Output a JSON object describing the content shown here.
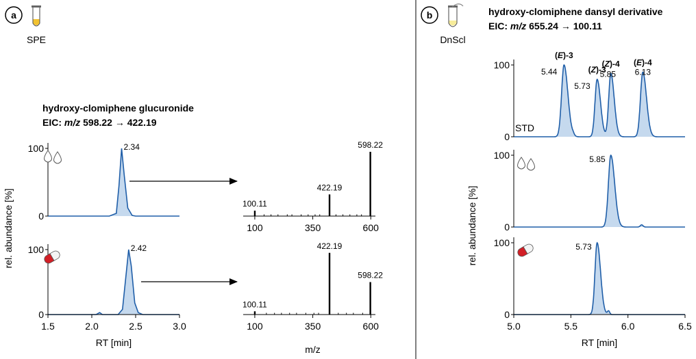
{
  "panel_a": {
    "badge": "a",
    "step_label": "SPE",
    "title": "hydroxy-clomiphene glucuronide",
    "eic_prefix": "EIC: ",
    "eic_mz": "m/z",
    "eic_value": " 598.22 → 422.19"
  },
  "panel_b": {
    "badge": "b",
    "step_label": "DnScl",
    "title": "hydroxy-clomiphene dansyl derivative",
    "eic_prefix": "EIC: ",
    "eic_mz": "m/z",
    "eic_value": " 655.24 → 100.11",
    "std_label": "STD"
  },
  "colors": {
    "trace": "#1f5ea8",
    "fill": "#c5d9ee",
    "axis": "#000000",
    "capsule_red": "#d21f26"
  },
  "chart_data": [
    {
      "id": "a_chrom_top",
      "type": "area",
      "sample": "urine-drops-icon",
      "xlim": [
        1.5,
        3.0
      ],
      "ylim": [
        0,
        100
      ],
      "x": [
        1.5,
        2.2,
        2.28,
        2.31,
        2.34,
        2.37,
        2.41,
        2.46,
        2.5,
        3.0
      ],
      "y": [
        0,
        0,
        4,
        45,
        100,
        60,
        12,
        1,
        0,
        0
      ],
      "yticks": [
        "0",
        "100"
      ],
      "peak_labels": [
        {
          "x": 2.34,
          "text": "2.34"
        }
      ]
    },
    {
      "id": "a_chrom_bottom",
      "type": "area",
      "sample": "capsule-icon",
      "xlim": [
        1.5,
        3.0
      ],
      "ylim": [
        0,
        100
      ],
      "x": [
        1.5,
        2.05,
        2.09,
        2.12,
        2.3,
        2.35,
        2.39,
        2.42,
        2.45,
        2.49,
        2.53,
        2.58,
        3.0
      ],
      "y": [
        0,
        0,
        3,
        0,
        0,
        8,
        60,
        100,
        75,
        18,
        3,
        0,
        0
      ],
      "xticks": [
        "1.5",
        "2.0",
        "2.5",
        "3.0"
      ],
      "yticks": [
        "0",
        "100"
      ],
      "xlabel": "RT [min]",
      "ylabel": "rel. abundance [%]",
      "peak_labels": [
        {
          "x": 2.42,
          "text": "2.42"
        }
      ]
    },
    {
      "id": "a_ms_top",
      "type": "bar",
      "xlim": [
        50,
        620
      ],
      "ylim": [
        0,
        100
      ],
      "x": [
        100.11,
        422.19,
        598.22
      ],
      "y": [
        8,
        32,
        95
      ],
      "labels": [
        "100.11",
        "422.19",
        "598.22"
      ],
      "noise": [
        140,
        170,
        200,
        240,
        260,
        300,
        330,
        360,
        380,
        450,
        480,
        510,
        540,
        560
      ]
    },
    {
      "id": "a_ms_bottom",
      "type": "bar",
      "xlim": [
        50,
        620
      ],
      "ylim": [
        0,
        100
      ],
      "x": [
        100.11,
        422.19,
        598.22
      ],
      "y": [
        5,
        95,
        50
      ],
      "labels": [
        "100.11",
        "422.19",
        "598.22"
      ],
      "noise": [
        150,
        185,
        215,
        250,
        280,
        320,
        355,
        375,
        460,
        495,
        525,
        565
      ],
      "xticks": [
        "100",
        "350",
        "600"
      ],
      "xlabel": "m/z"
    },
    {
      "id": "b_chrom_std",
      "type": "area",
      "xlim": [
        5.0,
        6.5
      ],
      "ylim": [
        0,
        100
      ],
      "peaks": [
        {
          "rt": 5.44,
          "h": 100,
          "w": 0.025
        },
        {
          "rt": 5.73,
          "h": 80,
          "w": 0.022
        },
        {
          "rt": 5.85,
          "h": 88,
          "w": 0.022
        },
        {
          "rt": 6.13,
          "h": 90,
          "w": 0.024
        }
      ],
      "minor": [
        {
          "rt": 5.52,
          "h": 2,
          "w": 0.01
        }
      ],
      "yticks": [
        "0",
        "100"
      ],
      "peak_labels": [
        {
          "name_pre": "(",
          "name_it": "E",
          "name_post": ")-3",
          "rt": "5.44",
          "x": 5.44
        },
        {
          "name_pre": "(",
          "name_it": "Z",
          "name_post": ")-3",
          "rt": "5.73",
          "x": 5.73
        },
        {
          "name_pre": "(",
          "name_it": "Z",
          "name_post": ")-4",
          "rt": "5.85",
          "x": 5.85
        },
        {
          "name_pre": "(",
          "name_it": "E",
          "name_post": ")-4",
          "rt": "6.13",
          "x": 6.13
        }
      ]
    },
    {
      "id": "b_chrom_urine",
      "type": "area",
      "sample": "urine-drops-icon",
      "xlim": [
        5.0,
        6.5
      ],
      "ylim": [
        0,
        100
      ],
      "peaks": [
        {
          "rt": 5.85,
          "h": 100,
          "w": 0.025
        }
      ],
      "minor": [
        {
          "rt": 6.12,
          "h": 3,
          "w": 0.012
        }
      ],
      "yticks": [
        "0",
        "100"
      ],
      "peak_labels": [
        {
          "x": 5.85,
          "text": "5.85"
        }
      ]
    },
    {
      "id": "b_chrom_capsule",
      "type": "area",
      "sample": "capsule-icon",
      "xlim": [
        5.0,
        6.5
      ],
      "ylim": [
        0,
        100
      ],
      "peaks": [
        {
          "rt": 5.73,
          "h": 100,
          "w": 0.022
        }
      ],
      "minor": [
        {
          "rt": 5.83,
          "h": 5,
          "w": 0.01
        }
      ],
      "xticks": [
        "5.0",
        "5.5",
        "6.0",
        "6.5"
      ],
      "yticks": [
        "0",
        "100"
      ],
      "xlabel": "RT [min]",
      "ylabel": "rel. abundance [%]",
      "peak_labels": [
        {
          "x": 5.73,
          "text": "5.73"
        }
      ]
    }
  ]
}
